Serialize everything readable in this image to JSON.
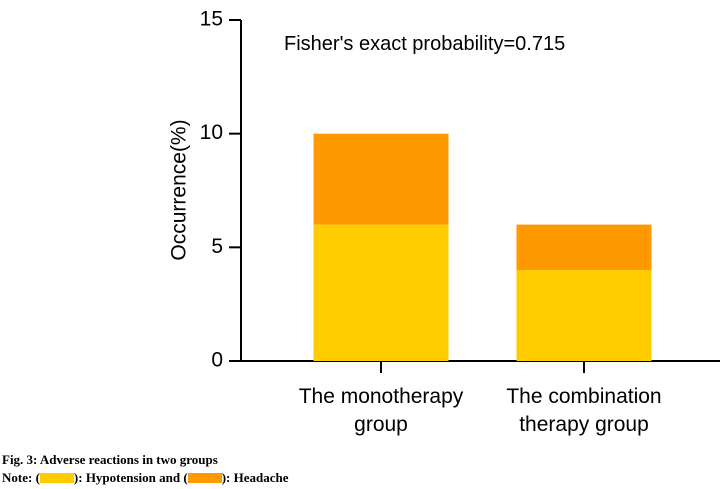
{
  "chart_data": {
    "type": "bar",
    "stacked": true,
    "categories": [
      [
        "The monotherapy",
        "group"
      ],
      [
        "The combination",
        "therapy group"
      ]
    ],
    "series": [
      {
        "name": "Hypotension",
        "values": [
          6,
          4
        ],
        "color": "#FFCC00"
      },
      {
        "name": "Headache",
        "values": [
          4,
          2
        ],
        "color": "#FF9900"
      }
    ],
    "ylabel": "Occurrence(%)",
    "ylim": [
      0,
      15
    ],
    "yticks": [
      "0",
      "5",
      "10",
      "15"
    ],
    "annotation": "Fisher's exact probability=0.715",
    "grid": false
  },
  "caption": {
    "title": "Fig. 3: Adverse reactions in two groups",
    "note_prefix": "Note: (",
    "note_mid1": "): Hypotension and (",
    "note_mid2": "): Headache"
  }
}
